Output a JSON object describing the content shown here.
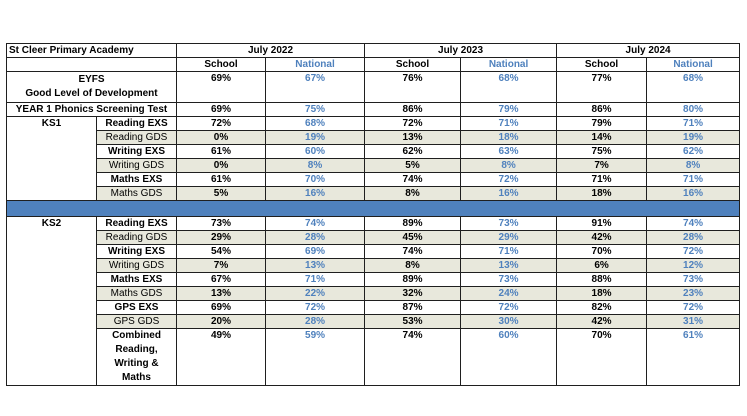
{
  "school_name": "St Cleer Primary Academy",
  "years": [
    "July 2022",
    "July 2023",
    "July 2024"
  ],
  "col_school": "School",
  "col_national": "National",
  "eyfs": {
    "label1": "EYFS",
    "label2": "Good Level of Development",
    "values": [
      "69%",
      "67%",
      "76%",
      "68%",
      "77%",
      "68%"
    ]
  },
  "phonics": {
    "label": "YEAR 1 Phonics Screening Test",
    "values": [
      "69%",
      "75%",
      "86%",
      "79%",
      "86%",
      "80%"
    ]
  },
  "ks1": {
    "label": "KS1",
    "rows": [
      {
        "label": "Reading EXS",
        "values": [
          "72%",
          "68%",
          "72%",
          "71%",
          "79%",
          "71%"
        ]
      },
      {
        "label": "Reading GDS",
        "values": [
          "0%",
          "19%",
          "13%",
          "18%",
          "14%",
          "19%"
        ]
      },
      {
        "label": "Writing EXS",
        "values": [
          "61%",
          "60%",
          "62%",
          "63%",
          "75%",
          "62%"
        ]
      },
      {
        "label": "Writing GDS",
        "values": [
          "0%",
          "8%",
          "5%",
          "8%",
          "7%",
          "8%"
        ]
      },
      {
        "label": "Maths EXS",
        "values": [
          "61%",
          "70%",
          "74%",
          "72%",
          "71%",
          "71%"
        ]
      },
      {
        "label": "Maths GDS",
        "values": [
          "5%",
          "16%",
          "8%",
          "16%",
          "18%",
          "16%"
        ]
      }
    ]
  },
  "ks2": {
    "label": "KS2",
    "rows": [
      {
        "label": "Reading EXS",
        "values": [
          "73%",
          "74%",
          "89%",
          "73%",
          "91%",
          "74%"
        ]
      },
      {
        "label": "Reading GDS",
        "values": [
          "29%",
          "28%",
          "45%",
          "29%",
          "42%",
          "28%"
        ]
      },
      {
        "label": "Writing EXS",
        "values": [
          "54%",
          "69%",
          "74%",
          "71%",
          "70%",
          "72%"
        ]
      },
      {
        "label": "Writing GDS",
        "values": [
          "7%",
          "13%",
          "8%",
          "13%",
          "6%",
          "12%"
        ]
      },
      {
        "label": "Maths EXS",
        "values": [
          "67%",
          "71%",
          "89%",
          "73%",
          "88%",
          "73%"
        ]
      },
      {
        "label": "Maths GDS",
        "values": [
          "13%",
          "22%",
          "32%",
          "24%",
          "18%",
          "23%"
        ]
      },
      {
        "label": "GPS EXS",
        "values": [
          "69%",
          "72%",
          "87%",
          "72%",
          "82%",
          "72%"
        ]
      },
      {
        "label": "GPS GDS",
        "values": [
          "20%",
          "28%",
          "53%",
          "30%",
          "42%",
          "31%"
        ]
      }
    ],
    "combined": {
      "label": "Combined Reading, Writing & Maths",
      "values": [
        "49%",
        "59%",
        "74%",
        "60%",
        "70%",
        "61%"
      ]
    }
  }
}
